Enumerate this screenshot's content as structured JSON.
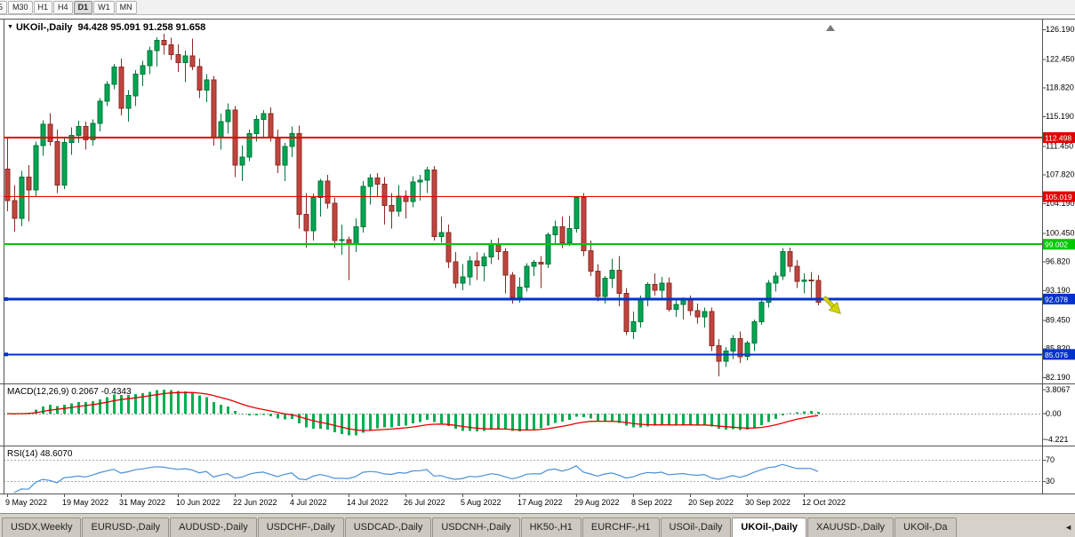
{
  "toolbar": {
    "timeframes": [
      {
        "label": "5",
        "active": false
      },
      {
        "label": "M30",
        "active": false
      },
      {
        "label": "H1",
        "active": false
      },
      {
        "label": "H4",
        "active": false
      },
      {
        "label": "D1",
        "active": true
      },
      {
        "label": "W1",
        "active": false
      },
      {
        "label": "MN",
        "active": false
      }
    ]
  },
  "chart": {
    "symbol": "UKOil-,Daily",
    "ohlc": "94.428 95.091 91.258 91.658",
    "dropdown_icon": "▼"
  },
  "macd": {
    "label": "MACD(12,26,9) 0.2067 -0.4343",
    "axis": [
      "3.8067",
      "0.00",
      "-4.221"
    ]
  },
  "rsi": {
    "label": "RSI(14) 48.6070",
    "levels": [
      "70",
      "30"
    ]
  },
  "colors": {
    "bull": "#00A651",
    "bull_border": "#00763a",
    "bear": "#C0453F",
    "bear_border": "#8C2B26",
    "macd_hist": "#00B050",
    "macd_signal": "#E80000",
    "rsi_line": "#4A90D9",
    "hline_red": "#E10000",
    "hline_green": "#00C800",
    "hline_blue": "#0033CC",
    "arrow": "#D4D400"
  },
  "chart_data": {
    "type": "candlestick",
    "title": "UKOil-,Daily",
    "timeframe": "Daily",
    "last_ohlc": {
      "open": 94.428,
      "high": 95.091,
      "low": 91.258,
      "close": 91.658
    },
    "ohlc_format": [
      "open",
      "high",
      "low",
      "close"
    ],
    "candles": [
      [
        108.5,
        112.6,
        103.2,
        104.5
      ],
      [
        104.5,
        106.5,
        100.6,
        102.3
      ],
      [
        102.3,
        108.3,
        101.3,
        107.5
      ],
      [
        107.5,
        109.0,
        101.9,
        105.9
      ],
      [
        105.9,
        112.0,
        105.0,
        111.5
      ],
      [
        111.5,
        114.7,
        110.2,
        114.2
      ],
      [
        114.2,
        115.6,
        111.5,
        112.0
      ],
      [
        112.0,
        113.5,
        105.5,
        106.5
      ],
      [
        106.5,
        112.4,
        106.0,
        111.9
      ],
      [
        111.9,
        113.8,
        110.3,
        112.8
      ],
      [
        112.8,
        114.6,
        111.8,
        113.9
      ],
      [
        113.9,
        114.5,
        111.0,
        112.2
      ],
      [
        112.2,
        114.8,
        111.5,
        114.3
      ],
      [
        114.3,
        117.5,
        113.3,
        117.1
      ],
      [
        117.1,
        119.6,
        116.5,
        119.2
      ],
      [
        119.2,
        121.8,
        118.6,
        121.4
      ],
      [
        121.4,
        122.5,
        115.3,
        116.2
      ],
      [
        116.2,
        118.5,
        114.5,
        117.8
      ],
      [
        117.8,
        121.0,
        116.5,
        120.5
      ],
      [
        120.5,
        122.2,
        119.0,
        121.6
      ],
      [
        121.6,
        124.0,
        120.5,
        123.5
      ],
      [
        123.5,
        125.2,
        121.5,
        124.8
      ],
      [
        124.8,
        125.6,
        123.0,
        124.2
      ],
      [
        124.2,
        125.1,
        122.3,
        123.0
      ],
      [
        123.0,
        124.3,
        120.8,
        122.0
      ],
      [
        122.0,
        123.5,
        119.5,
        122.8
      ],
      [
        122.8,
        125.0,
        121.0,
        121.5
      ],
      [
        121.5,
        122.5,
        117.5,
        118.5
      ],
      [
        118.5,
        120.5,
        117.0,
        119.8
      ],
      [
        119.8,
        120.3,
        111.5,
        112.5
      ],
      [
        112.5,
        115.5,
        111.0,
        114.5
      ],
      [
        114.5,
        116.8,
        113.0,
        116.0
      ],
      [
        116.0,
        116.5,
        107.5,
        109.0
      ],
      [
        109.0,
        111.5,
        107.0,
        110.0
      ],
      [
        110.0,
        113.5,
        109.5,
        113.0
      ],
      [
        113.0,
        115.3,
        112.0,
        114.8
      ],
      [
        114.8,
        116.0,
        112.5,
        115.5
      ],
      [
        115.5,
        116.3,
        112.0,
        112.5
      ],
      [
        112.5,
        113.5,
        108.0,
        109.0
      ],
      [
        109.0,
        111.8,
        107.0,
        111.4
      ],
      [
        111.4,
        113.9,
        110.0,
        113.0
      ],
      [
        113.0,
        114.0,
        101.0,
        102.8
      ],
      [
        102.8,
        105.5,
        98.6,
        100.7
      ],
      [
        100.7,
        105.4,
        99.5,
        104.9
      ],
      [
        104.9,
        107.3,
        102.5,
        107.0
      ],
      [
        107.0,
        107.8,
        103.5,
        104.2
      ],
      [
        104.2,
        104.9,
        98.5,
        99.5
      ],
      [
        99.5,
        101.5,
        97.7,
        99.6
      ],
      [
        99.6,
        100.0,
        94.5,
        99.1
      ],
      [
        99.1,
        102.3,
        98.0,
        101.2
      ],
      [
        101.2,
        107.0,
        100.5,
        106.3
      ],
      [
        106.3,
        107.9,
        104.0,
        107.4
      ],
      [
        107.4,
        108.0,
        105.0,
        106.6
      ],
      [
        106.6,
        107.5,
        101.5,
        103.9
      ],
      [
        103.9,
        105.5,
        101.0,
        103.2
      ],
      [
        103.2,
        106.5,
        102.5,
        105.1
      ],
      [
        105.1,
        105.8,
        102.3,
        104.4
      ],
      [
        104.4,
        107.6,
        103.7,
        106.9
      ],
      [
        106.9,
        107.8,
        104.5,
        107.1
      ],
      [
        107.1,
        108.8,
        105.5,
        108.4
      ],
      [
        108.4,
        108.9,
        99.5,
        100.0
      ],
      [
        100.0,
        102.5,
        99.2,
        100.5
      ],
      [
        100.5,
        101.5,
        96.0,
        96.8
      ],
      [
        96.8,
        98.0,
        93.5,
        94.1
      ],
      [
        94.1,
        96.5,
        93.2,
        94.9
      ],
      [
        94.9,
        97.5,
        93.8,
        96.9
      ],
      [
        96.9,
        98.0,
        94.5,
        96.3
      ],
      [
        96.3,
        97.9,
        94.3,
        97.4
      ],
      [
        97.4,
        99.6,
        96.5,
        99.1
      ],
      [
        99.1,
        99.8,
        97.0,
        98.1
      ],
      [
        98.1,
        98.5,
        92.8,
        95.1
      ],
      [
        95.1,
        95.5,
        91.5,
        92.3
      ],
      [
        92.3,
        94.8,
        91.6,
        93.6
      ],
      [
        93.6,
        96.6,
        93.0,
        96.2
      ],
      [
        96.2,
        97.0,
        95.0,
        96.7
      ],
      [
        96.7,
        97.5,
        93.5,
        96.5
      ],
      [
        96.5,
        100.5,
        96.0,
        100.2
      ],
      [
        100.2,
        102.0,
        99.0,
        101.2
      ],
      [
        101.2,
        102.5,
        98.5,
        99.2
      ],
      [
        99.2,
        102.6,
        98.8,
        101.0
      ],
      [
        101.0,
        105.1,
        100.5,
        104.9
      ],
      [
        104.9,
        105.5,
        97.5,
        98.2
      ],
      [
        98.2,
        99.5,
        95.0,
        95.6
      ],
      [
        95.6,
        96.5,
        91.8,
        92.4
      ],
      [
        92.4,
        95.0,
        91.5,
        94.7
      ],
      [
        94.7,
        97.2,
        93.5,
        95.7
      ],
      [
        95.7,
        97.5,
        91.2,
        92.8
      ],
      [
        92.8,
        93.5,
        87.5,
        88.0
      ],
      [
        88.0,
        90.5,
        87.0,
        89.2
      ],
      [
        89.2,
        92.5,
        88.5,
        92.0
      ],
      [
        92.0,
        94.2,
        91.2,
        93.9
      ],
      [
        93.9,
        95.3,
        92.5,
        93.2
      ],
      [
        93.2,
        94.9,
        92.0,
        94.1
      ],
      [
        94.1,
        94.8,
        90.5,
        90.8
      ],
      [
        90.8,
        92.0,
        89.8,
        91.4
      ],
      [
        91.4,
        92.3,
        89.5,
        92.0
      ],
      [
        92.0,
        92.5,
        90.0,
        90.6
      ],
      [
        90.6,
        91.5,
        89.0,
        89.8
      ],
      [
        89.8,
        91.0,
        88.5,
        90.5
      ],
      [
        90.5,
        91.0,
        85.5,
        86.2
      ],
      [
        86.2,
        87.0,
        82.3,
        84.2
      ],
      [
        84.2,
        86.0,
        83.5,
        85.5
      ],
      [
        85.5,
        87.5,
        84.5,
        87.1
      ],
      [
        87.1,
        88.0,
        84.0,
        84.8
      ],
      [
        84.8,
        86.8,
        84.3,
        86.5
      ],
      [
        86.5,
        89.5,
        85.5,
        89.2
      ],
      [
        89.2,
        92.0,
        88.8,
        91.7
      ],
      [
        91.7,
        94.5,
        91.0,
        94.1
      ],
      [
        94.1,
        95.5,
        93.0,
        95.0
      ],
      [
        95.0,
        98.5,
        94.5,
        98.1
      ],
      [
        98.1,
        98.6,
        95.5,
        96.2
      ],
      [
        96.2,
        97.0,
        93.5,
        94.3
      ],
      [
        94.3,
        95.3,
        92.8,
        94.5
      ],
      [
        94.5,
        95.5,
        92.0,
        94.4
      ],
      [
        94.428,
        95.091,
        91.258,
        91.658
      ]
    ],
    "x_tick_labels": [
      [
        "9 May 2022",
        0
      ],
      [
        "19 May 2022",
        8
      ],
      [
        "31 May 2022",
        16
      ],
      [
        "10 Jun 2022",
        24
      ],
      [
        "22 Jun 2022",
        32
      ],
      [
        "4 Jul 2022",
        40
      ],
      [
        "14 Jul 2022",
        48
      ],
      [
        "26 Jul 2022",
        56
      ],
      [
        "5 Aug 2022",
        64
      ],
      [
        "17 Aug 2022",
        72
      ],
      [
        "29 Aug 2022",
        80
      ],
      [
        "8 Sep 2022",
        88
      ],
      [
        "20 Sep 2022",
        96
      ],
      [
        "30 Sep 2022",
        104
      ],
      [
        "12 Oct 2022",
        112
      ]
    ],
    "y_tick_labels": [
      "126.190",
      "122.450",
      "118.820",
      "115.190",
      "111.450",
      "107.820",
      "104.190",
      "100.450",
      "96.820",
      "93.190",
      "89.450",
      "85.820",
      "82.190"
    ],
    "horizontal_lines": [
      {
        "label": "112.498",
        "value": 112.498,
        "color": "#E10000",
        "width": 2,
        "marker": false
      },
      {
        "label": "105.019",
        "value": 105.019,
        "color": "#E10000",
        "width": 1,
        "marker": false
      },
      {
        "label": "99.002",
        "value": 99.002,
        "color": "#00C800",
        "width": 2,
        "marker": false
      },
      {
        "label": "92.078",
        "value": 92.078,
        "color": "#0033CC",
        "width": 3,
        "marker": true
      },
      {
        "label": "85.076",
        "value": 85.076,
        "color": "#0033CC",
        "width": 2,
        "marker": true
      }
    ],
    "indicators": [
      {
        "name": "MACD",
        "params": "12,26,9",
        "current": "0.2067 -0.4343",
        "axis_labels": [
          "3.8067",
          "0.00",
          "-4.221"
        ]
      },
      {
        "name": "RSI",
        "params": "14",
        "current": "48.6070",
        "axis_labels": [
          "70",
          "30"
        ]
      }
    ],
    "annotations": [
      {
        "type": "arrow",
        "direction": "down-right",
        "color": "#D4D400",
        "near_price": 91.0,
        "near_bar": 116
      }
    ]
  },
  "tabs": {
    "active": "UKOil-,Daily",
    "scroll_left_icon": "◄",
    "items": [
      "USDX,Weekly",
      "EURUSD-,Daily",
      "AUDUSD-,Daily",
      "USDCHF-,Daily",
      "USDCAD-,Daily",
      "USDCNH-,Daily",
      "HK50-,H1",
      "EURCHF-,H1",
      "USOil-,Daily",
      "UKOil-,Daily",
      "XAUUSD-,Daily",
      "UKOil-,Da"
    ]
  }
}
